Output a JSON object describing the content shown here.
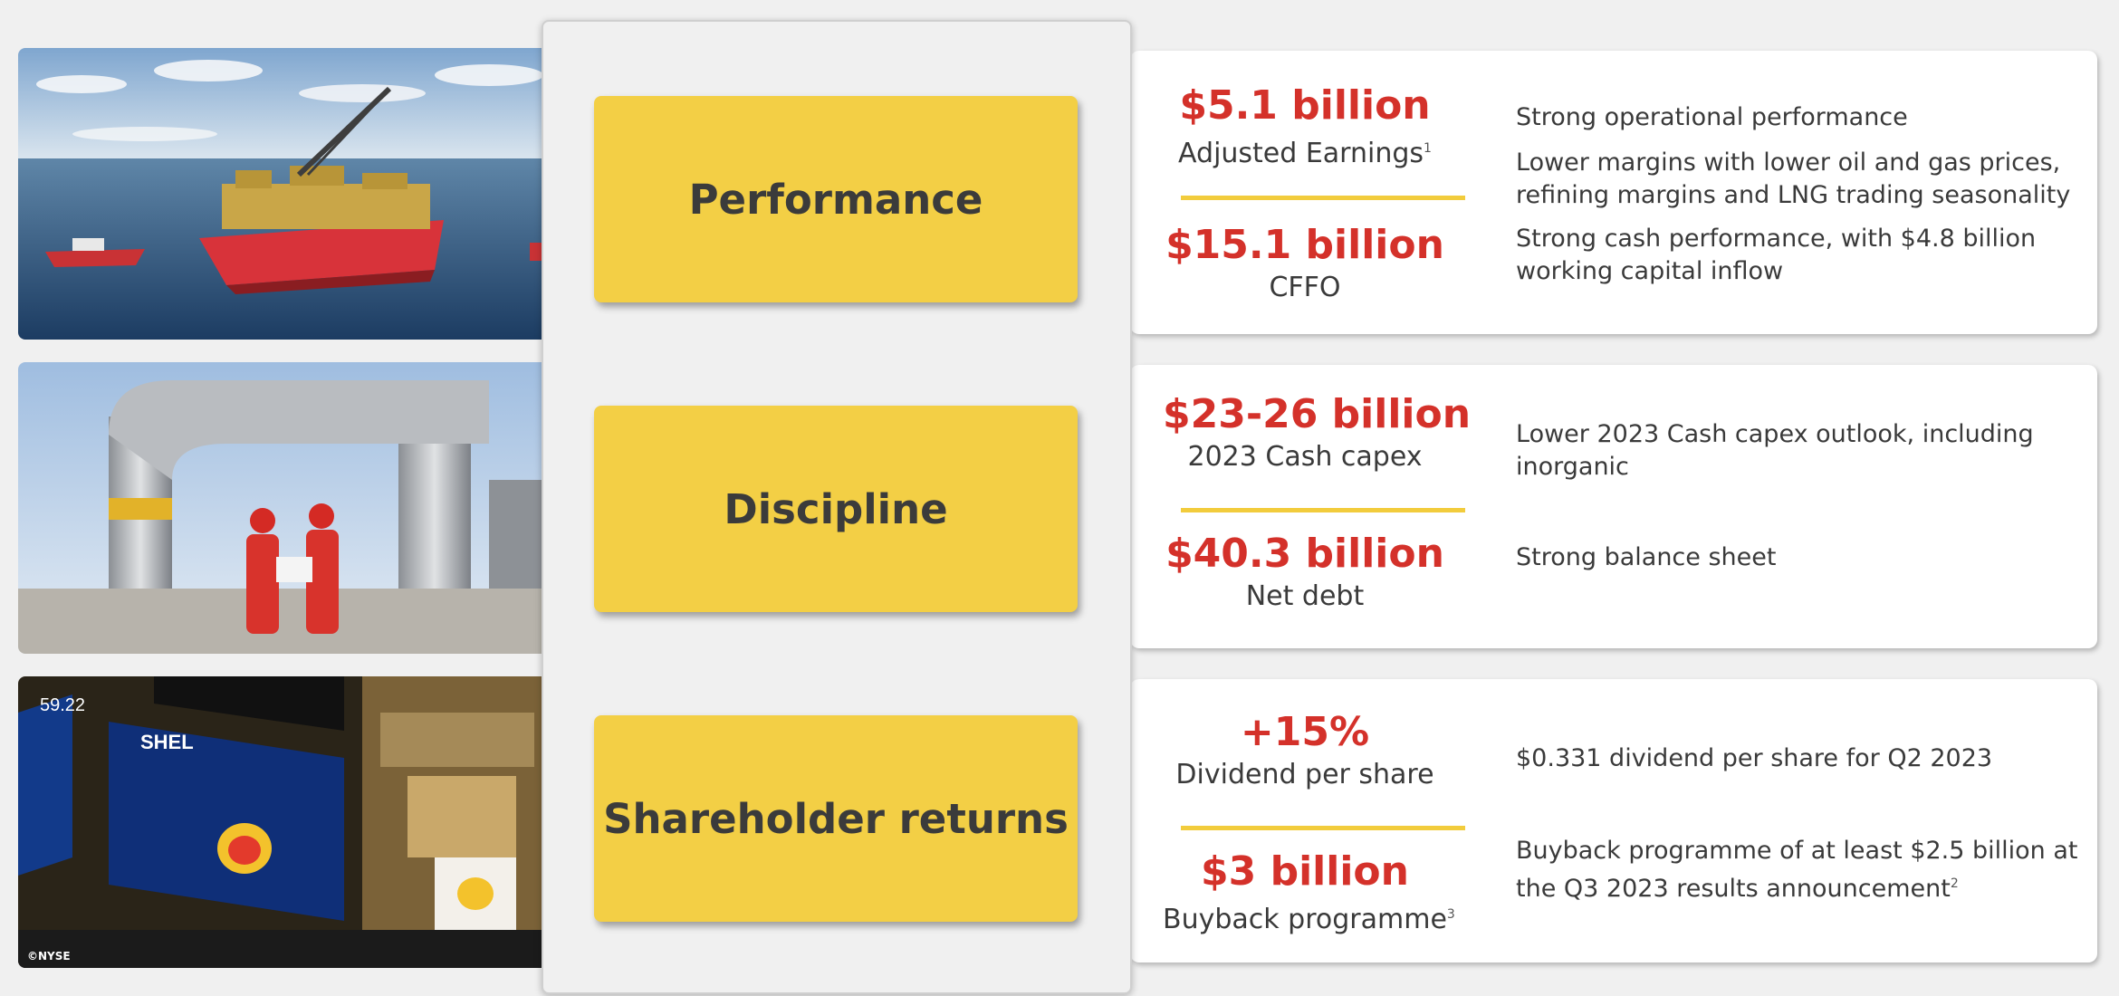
{
  "photos": [
    {
      "subject": "offshore-floating-lng-vessel"
    },
    {
      "subject": "workers-at-gas-pipeline"
    },
    {
      "subject": "nyse-trading-floor",
      "credit": "©NYSE",
      "screen_ticker": "SHEL",
      "screen_price": "59.22"
    }
  ],
  "pillars": [
    {
      "title": "Performance",
      "metrics": [
        {
          "value": "$5.1 billion",
          "label": "Adjusted Earnings",
          "note": "1"
        },
        {
          "value": "$15.1 billion",
          "label": "CFFO",
          "note": ""
        }
      ],
      "descriptions": [
        {
          "text": "Strong operational performance",
          "note": ""
        },
        {
          "text": "Lower margins with lower oil and gas prices, refining margins and LNG trading seasonality",
          "note": ""
        },
        {
          "text": "Strong cash performance, with $4.8 billion working capital inflow",
          "note": ""
        }
      ]
    },
    {
      "title": "Discipline",
      "metrics": [
        {
          "value": "$23-26 billion",
          "label": "2023 Cash capex",
          "note": ""
        },
        {
          "value": "$40.3 billion",
          "label": "Net debt",
          "note": ""
        }
      ],
      "descriptions": [
        {
          "text": "Lower 2023 Cash capex outlook, including inorganic",
          "note": ""
        },
        {
          "text": "Strong balance sheet",
          "note": ""
        }
      ]
    },
    {
      "title": "Shareholder returns",
      "metrics": [
        {
          "value": "+15%",
          "label": "Dividend per share",
          "note": ""
        },
        {
          "value": "$3 billion",
          "label": "Buyback programme",
          "note": "3"
        }
      ],
      "descriptions": [
        {
          "text": "$0.331 dividend per share for Q2 2023",
          "note": ""
        },
        {
          "text": "Buyback programme of at least $2.5 billion at the Q3 2023 results announcement",
          "note": "2"
        }
      ]
    }
  ],
  "colors": {
    "accent_red": "#d4312a",
    "pillar_yellow": "#f3cf45",
    "divider_yellow": "#f2cc3c",
    "text_dark": "#3a3a3a"
  }
}
